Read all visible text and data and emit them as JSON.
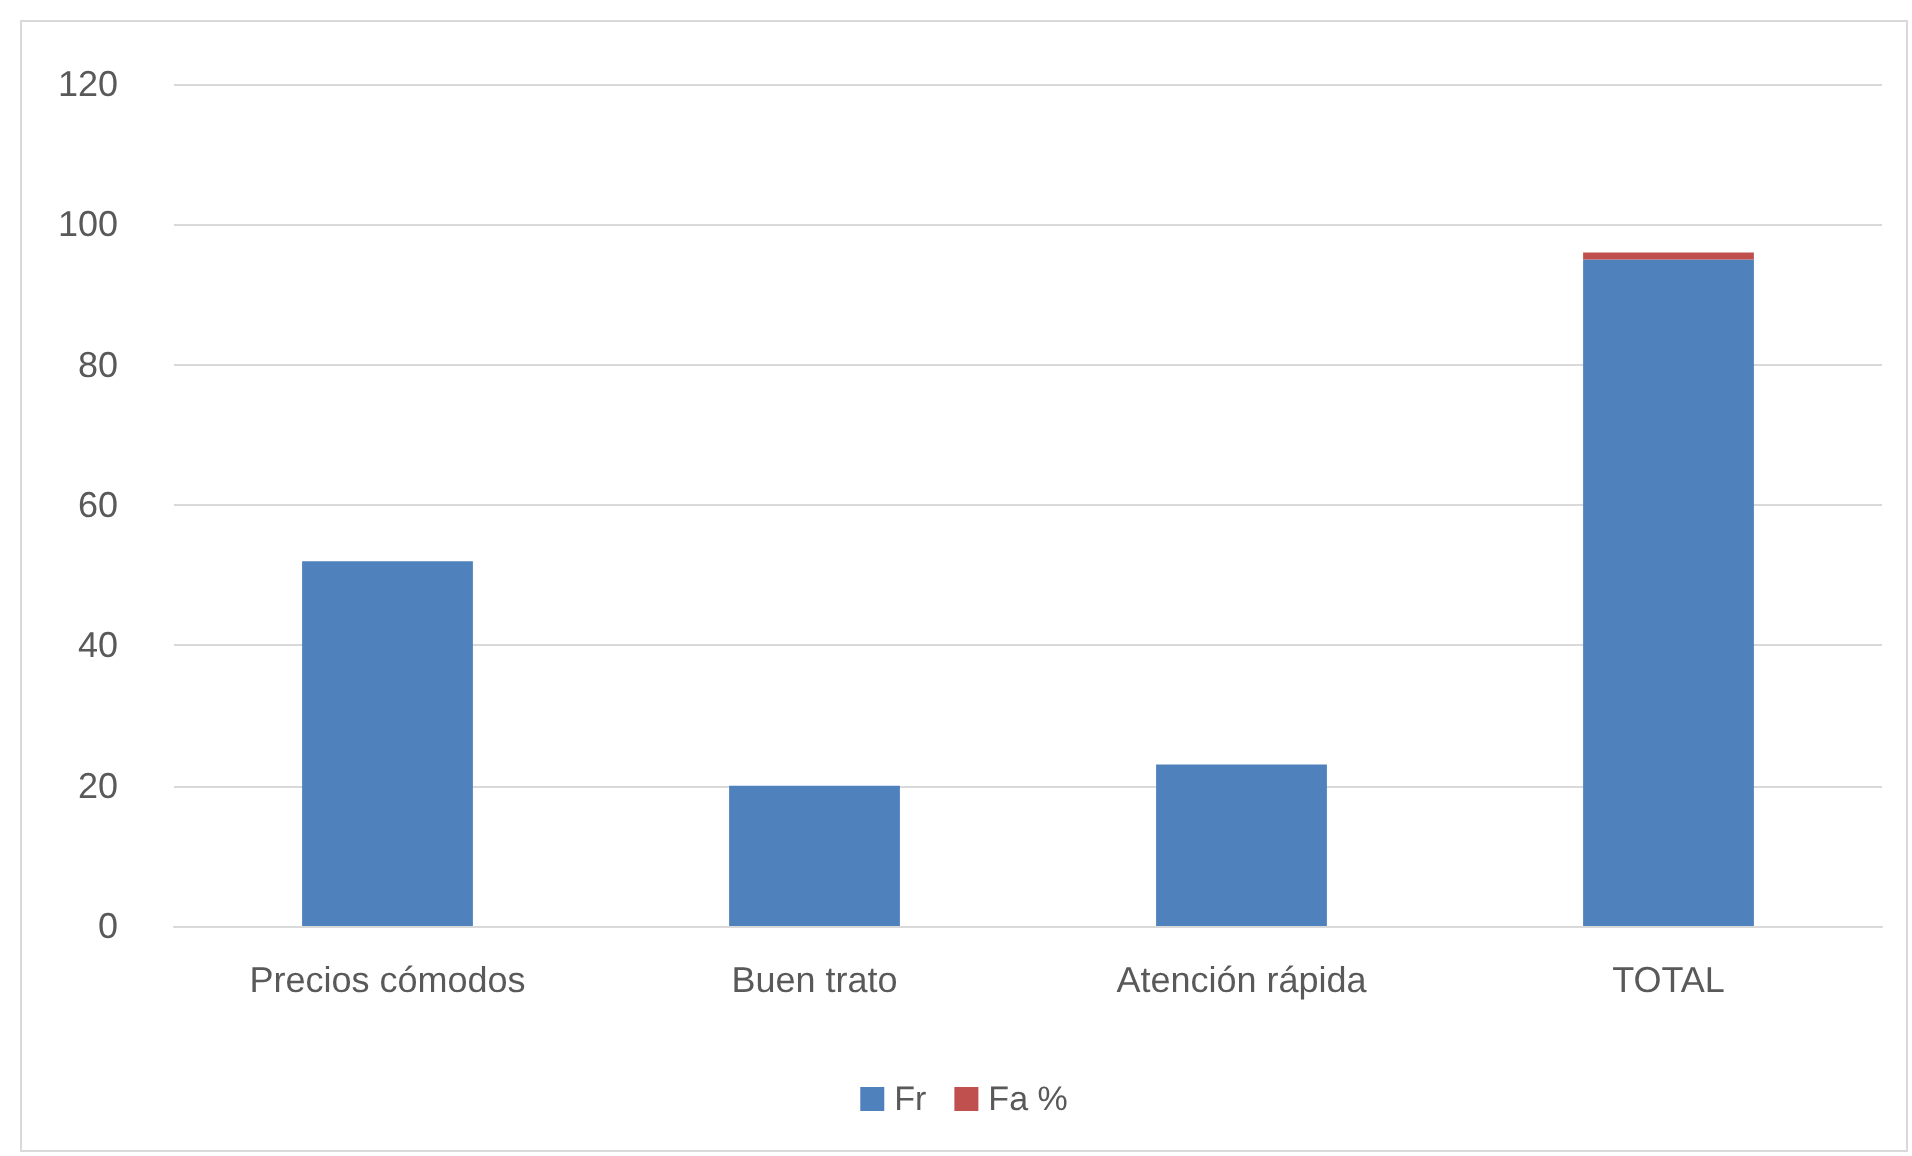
{
  "chart_data": {
    "type": "bar",
    "stacked": true,
    "categories": [
      "Precios cómodos",
      "Buen trato",
      "Atención rápida",
      "TOTAL"
    ],
    "series": [
      {
        "name": "Fr",
        "color": "#4f81bd",
        "values": [
          52,
          20,
          23,
          95
        ]
      },
      {
        "name": "Fa %",
        "color": "#c0504d",
        "values": [
          null,
          null,
          null,
          1
        ]
      }
    ],
    "ylim": [
      0,
      120
    ],
    "yticks": [
      0,
      20,
      40,
      60,
      80,
      100,
      120
    ],
    "grid": "y",
    "legend": "bottom"
  }
}
